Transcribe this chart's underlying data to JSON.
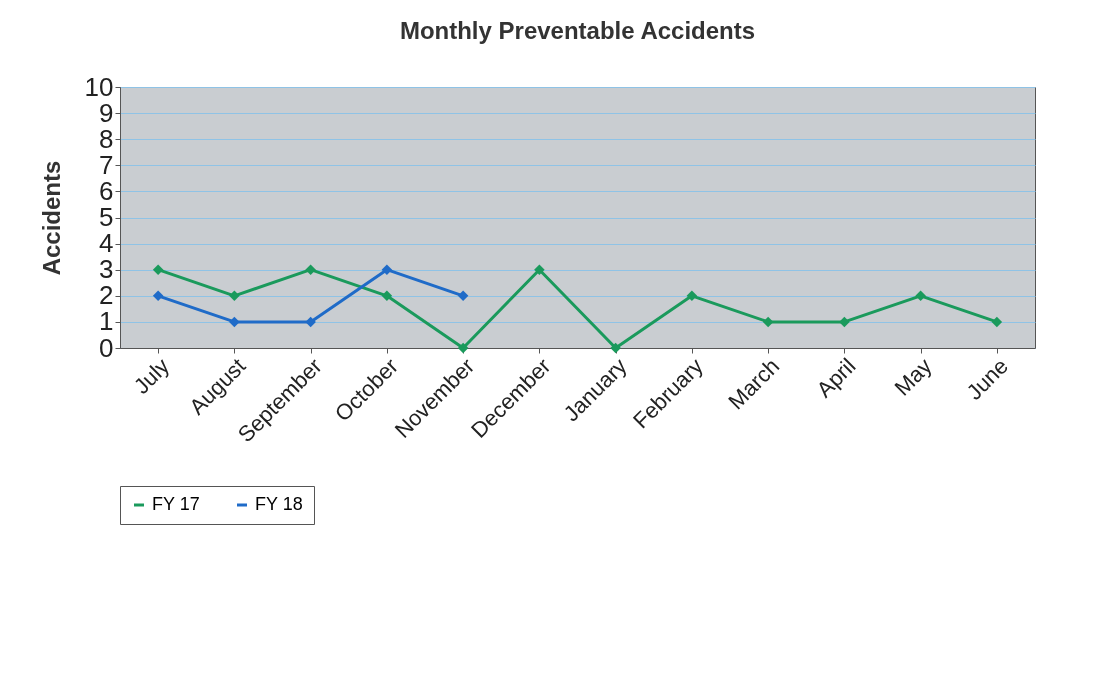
{
  "chart_data": {
    "type": "line",
    "title": "Monthly Preventable Accidents",
    "ylabel": "Accidents",
    "categories": [
      "July",
      "August",
      "September",
      "October",
      "November",
      "December",
      "January",
      "February",
      "March",
      "April",
      "May",
      "June"
    ],
    "series": [
      {
        "name": "FY 17",
        "color": "#1a9a5c",
        "values": [
          3,
          2,
          3,
          2,
          0,
          3,
          0,
          2,
          1,
          1,
          2,
          1
        ]
      },
      {
        "name": "FY 18",
        "color": "#1f6bc8",
        "values": [
          2,
          1,
          1,
          3,
          2,
          null,
          null,
          null,
          null,
          null,
          null,
          null
        ]
      }
    ],
    "ylim": [
      0,
      10
    ],
    "yticks": [
      0,
      1,
      2,
      3,
      4,
      5,
      6,
      7,
      8,
      9,
      10
    ],
    "grid": "y",
    "legend": "bottom",
    "marker": "diamond",
    "line_style": "solid"
  }
}
